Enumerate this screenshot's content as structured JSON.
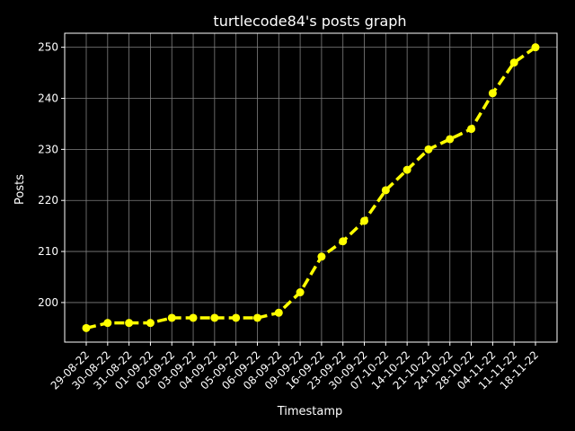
{
  "chart_data": {
    "type": "line",
    "title": "turtlecode84's posts graph",
    "xlabel": "Timestamp",
    "ylabel": "Posts",
    "categories": [
      "29-08-22",
      "30-08-22",
      "31-08-22",
      "01-09-22",
      "02-09-22",
      "03-09-22",
      "04-09-22",
      "05-09-22",
      "06-09-22",
      "08-09-22",
      "09-09-22",
      "16-09-22",
      "23-09-22",
      "30-09-22",
      "07-10-22",
      "14-10-22",
      "21-10-22",
      "24-10-22",
      "28-10-22",
      "04-11-22",
      "11-11-22",
      "18-11-22"
    ],
    "series": [
      {
        "values": [
          195,
          196,
          196,
          196,
          197,
          197,
          197,
          197,
          197,
          198,
          202,
          209,
          212,
          216,
          222,
          226,
          230,
          232,
          234,
          241,
          247,
          250
        ]
      }
    ],
    "ylim": [
      192.25,
      252.75
    ],
    "yticks": [
      200,
      210,
      220,
      230,
      240,
      250
    ],
    "grid": true,
    "colors": {
      "background": "#000000",
      "line": "#ffff00",
      "grid": "#808080",
      "axis": "#ffffff",
      "text": "#ffffff"
    },
    "line_style": "dashed",
    "marker": "circle"
  }
}
